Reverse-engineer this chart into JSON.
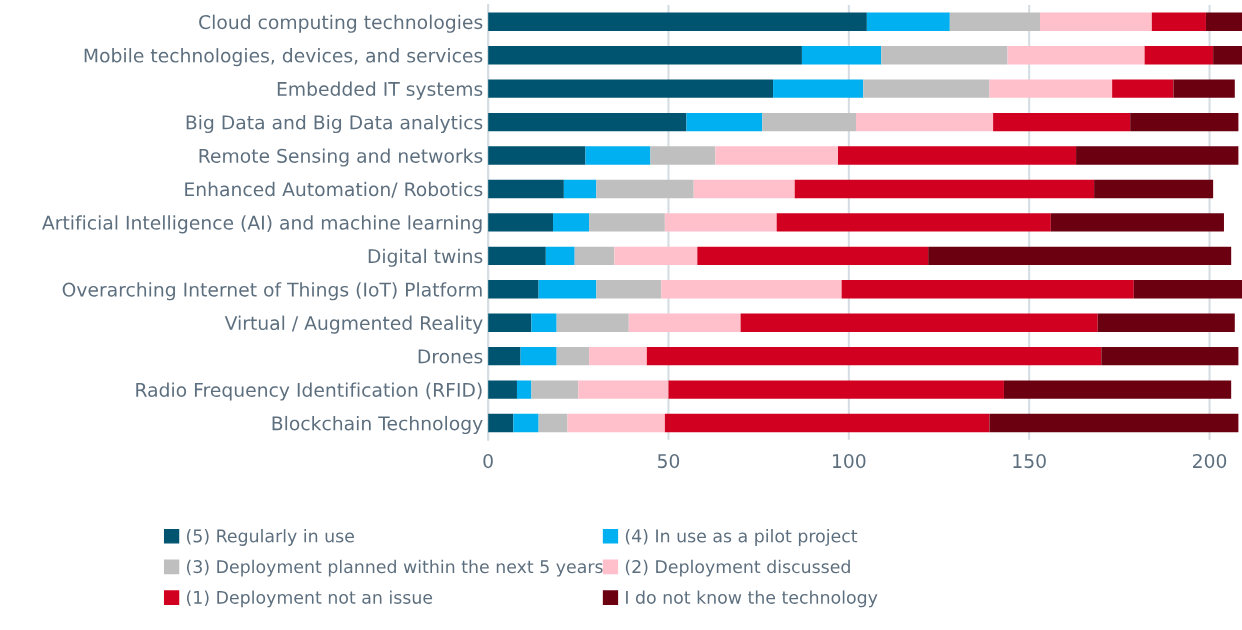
{
  "chart_data": {
    "type": "bar",
    "orientation": "horizontal",
    "stacked": true,
    "categories": [
      "Cloud computing technologies",
      "Mobile technologies, devices, and services",
      "Embedded IT systems",
      "Big Data and Big Data analytics",
      "Remote Sensing and networks",
      "Enhanced Automation/ Robotics",
      "Artificial Intelligence (AI) and machine learning",
      "Digital twins",
      "Overarching Internet of Things (IoT) Platform",
      "Virtual / Augmented Reality",
      "Drones",
      "Radio Frequency Identification (RFID)",
      "Blockchain Technology"
    ],
    "series": [
      {
        "name": "(5) Regularly in use",
        "color": "#005470",
        "values": [
          105,
          87,
          79,
          55,
          27,
          21,
          18,
          16,
          14,
          12,
          9,
          8,
          7
        ]
      },
      {
        "name": "(4) In use as a pilot project",
        "color": "#00b0f0",
        "values": [
          23,
          22,
          25,
          21,
          18,
          9,
          10,
          8,
          16,
          7,
          10,
          4,
          7
        ]
      },
      {
        "name": "(3) Deployment planned within the next 5 years",
        "color": "#bfbfbf",
        "values": [
          25,
          35,
          35,
          26,
          18,
          27,
          21,
          11,
          18,
          20,
          9,
          13,
          8
        ]
      },
      {
        "name": "(2) Deployment discussed",
        "color": "#ffc0cb",
        "values": [
          31,
          38,
          34,
          38,
          34,
          28,
          31,
          23,
          50,
          31,
          16,
          25,
          27
        ]
      },
      {
        "name": "(1) Deployment not an issue",
        "color": "#d20020",
        "values": [
          15,
          19,
          17,
          38,
          66,
          83,
          76,
          64,
          81,
          99,
          126,
          93,
          90
        ]
      },
      {
        "name": "I do not know the technology",
        "color": "#6b0010",
        "values": [
          10,
          8,
          17,
          30,
          45,
          33,
          48,
          84,
          30,
          38,
          38,
          63,
          69
        ]
      }
    ],
    "xlim": [
      0,
      209
    ],
    "xticks": [
      0,
      50,
      100,
      150,
      200
    ],
    "grid": "x",
    "legend": "bottom"
  }
}
